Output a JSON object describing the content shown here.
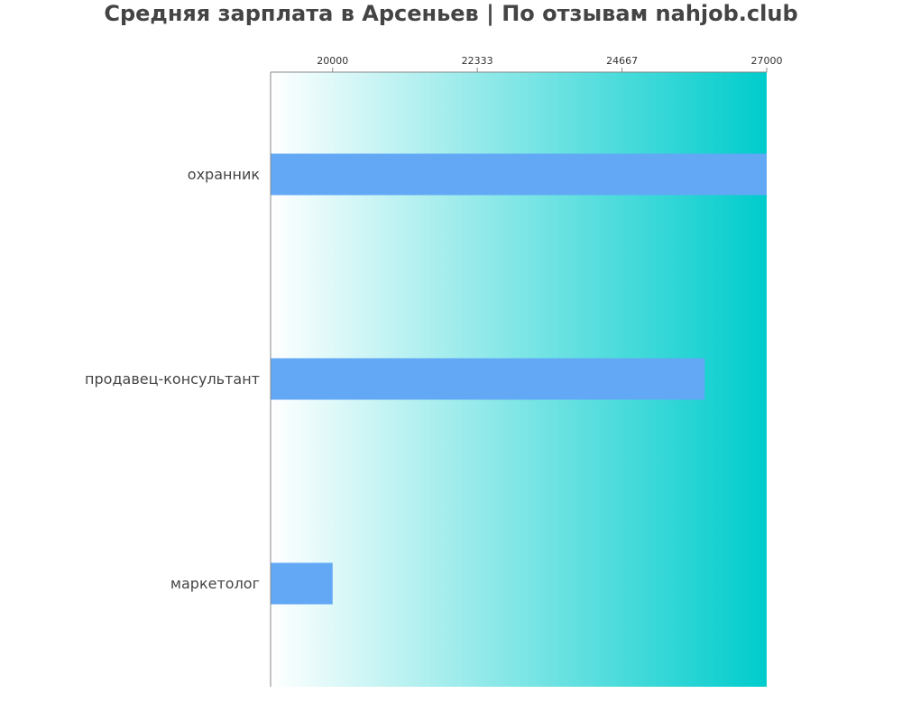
{
  "chart_data": {
    "type": "bar",
    "orientation": "horizontal",
    "title": "Средняя зарплата в Арсеньев | По отзывам nahjob.club",
    "xlabel": "",
    "ylabel": "",
    "categories": [
      "охранник",
      "продавец-консультант",
      "маркетолог"
    ],
    "values": [
      27000,
      26000,
      20000
    ],
    "xlim": [
      19000,
      27000
    ],
    "x_ticks": [
      20000,
      22333,
      24667,
      27000
    ],
    "x_tick_labels": [
      "20000",
      "22333",
      "24667",
      "27000"
    ],
    "x_axis_position": "top",
    "grid": false,
    "legend": "none"
  },
  "colors": {
    "bar": "#62a8f5",
    "background_gradient_start": "#ffffff",
    "background_gradient_end": "#00cccc",
    "title": "#444444",
    "axis": "#888888"
  }
}
